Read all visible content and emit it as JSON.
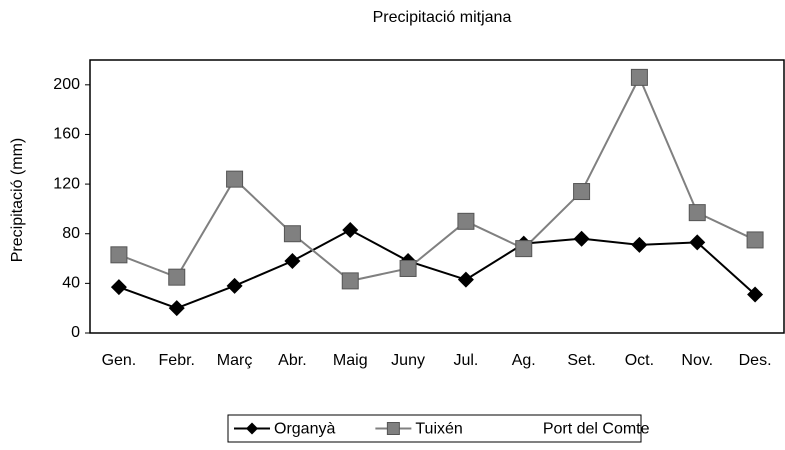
{
  "chart_data": {
    "type": "line",
    "title": "Precipitació mitjana",
    "y_label": "Precipitació (mm)",
    "categories": [
      "Gen.",
      "Febr.",
      "Març",
      "Abr.",
      "Maig",
      "Juny",
      "Jul.",
      "Ag.",
      "Set.",
      "Oct.",
      "Nov.",
      "Des."
    ],
    "series": [
      {
        "name": "Organyà",
        "color": "#000000",
        "marker": "diamond",
        "values": [
          37,
          20,
          38,
          58,
          83,
          58,
          43,
          72,
          76,
          71,
          73,
          31
        ]
      },
      {
        "name": "Tuixén",
        "color": "#808080",
        "marker": "square",
        "values": [
          63,
          45,
          124,
          80,
          42,
          52,
          90,
          68,
          114,
          206,
          97,
          75
        ]
      },
      {
        "name": "Port del Comte",
        "color": "#ffffff",
        "marker": "triangle",
        "values": [
          null,
          null,
          null,
          null,
          null,
          null,
          null,
          null,
          null,
          null,
          null,
          null
        ]
      }
    ],
    "ylim": [
      0,
      220
    ],
    "yticks": [
      0,
      40,
      80,
      120,
      160,
      200
    ],
    "grid": false,
    "legend": "bottom"
  }
}
